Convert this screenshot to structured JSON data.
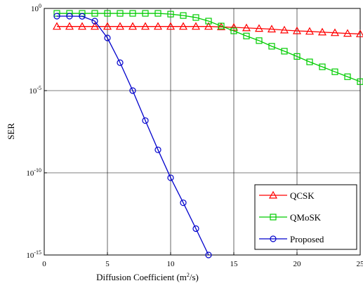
{
  "chart_data": {
    "type": "line",
    "xlabel": "Diffusion Coefficient (m^2/s)",
    "ylabel": "SER",
    "x": [
      1,
      2,
      3,
      4,
      5,
      6,
      7,
      8,
      9,
      10,
      11,
      12,
      13,
      14,
      15,
      16,
      17,
      18,
      19,
      20,
      21,
      22,
      23,
      24,
      25
    ],
    "series": [
      {
        "name": "QCSK",
        "color": "#ff0000",
        "marker": "triangle",
        "values": [
          0.08,
          0.08,
          0.08,
          0.08,
          0.08,
          0.08,
          0.08,
          0.08,
          0.08,
          0.08,
          0.08,
          0.08,
          0.08,
          0.075,
          0.07,
          0.065,
          0.06,
          0.055,
          0.048,
          0.043,
          0.04,
          0.036,
          0.033,
          0.03,
          0.028
        ]
      },
      {
        "name": "QMoSK",
        "color": "#00cc00",
        "marker": "square",
        "values": [
          0.5,
          0.5,
          0.5,
          0.5,
          0.5,
          0.5,
          0.5,
          0.5,
          0.5,
          0.45,
          0.37,
          0.28,
          0.17,
          0.085,
          0.043,
          0.021,
          0.011,
          0.005,
          0.0025,
          0.0012,
          0.00056,
          0.00028,
          0.00014,
          7e-05,
          3.5e-05
        ]
      },
      {
        "name": "Proposed",
        "color": "#0000cc",
        "marker": "circle",
        "values": [
          0.34,
          0.34,
          0.33,
          0.17,
          0.016,
          0.0005,
          1e-05,
          1.5e-07,
          2.5e-09,
          5e-11,
          1.5e-12,
          4e-14,
          1e-15,
          null,
          null,
          null,
          null,
          null,
          null,
          null,
          null,
          null,
          null,
          null,
          null
        ]
      }
    ],
    "xlim": [
      0,
      25
    ],
    "xticks": [
      0,
      5,
      10,
      15,
      20,
      25
    ],
    "ylim": [
      1e-15,
      1
    ],
    "log_y": true,
    "yticks": [
      {
        "value": 1e-15,
        "label": "10^-15"
      },
      {
        "value": 1e-10,
        "label": "10^-10"
      },
      {
        "value": 1e-05,
        "label": "10^-5"
      },
      {
        "value": 1,
        "label": "10^0"
      }
    ],
    "grid": true,
    "legend": "lower right"
  }
}
